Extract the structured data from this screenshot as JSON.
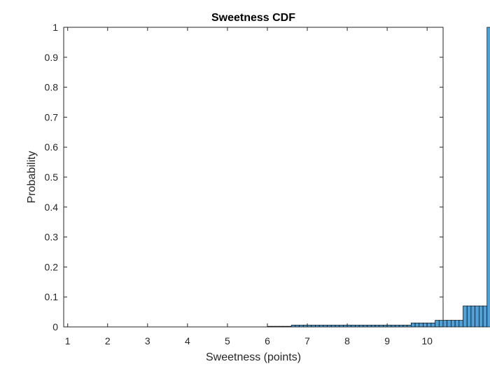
{
  "chart_data": {
    "type": "bar",
    "title": "Sweetness CDF",
    "xlabel": "Sweetness (points)",
    "ylabel": "Probability",
    "xlim": [
      0.9,
      10.4
    ],
    "ylim": [
      0,
      1
    ],
    "xticks": [
      "1",
      "2",
      "3",
      "4",
      "5",
      "6",
      "7",
      "8",
      "9",
      "10"
    ],
    "yticks": [
      "0",
      "0.1",
      "0.2",
      "0.3",
      "0.4",
      "0.5",
      "0.6",
      "0.7",
      "0.8",
      "0.9",
      "1"
    ],
    "bin_width": 0.1,
    "bin_edges_start": 1.0,
    "values": [
      0,
      0,
      0,
      0,
      0,
      0,
      0,
      0,
      0,
      0,
      0,
      0,
      0,
      0,
      0,
      0,
      0,
      0,
      0,
      0,
      0,
      0,
      0,
      0,
      0,
      0,
      0,
      0,
      0,
      0,
      0,
      0,
      0,
      0,
      0,
      0,
      0,
      0,
      0,
      0,
      0,
      0,
      0,
      0,
      0,
      0,
      0,
      0,
      0,
      0,
      0.002,
      0.002,
      0.002,
      0.002,
      0.002,
      0.002,
      0.006,
      0.006,
      0.006,
      0.006,
      0.006,
      0.006,
      0.006,
      0.006,
      0.006,
      0.006,
      0.006,
      0.006,
      0.006,
      0.006,
      0.006,
      0.006,
      0.006,
      0.006,
      0.006,
      0.006,
      0.006,
      0.006,
      0.006,
      0.006,
      0.006,
      0.006,
      0.006,
      0.006,
      0.006,
      0.006,
      0.013,
      0.013,
      0.013,
      0.013,
      0.013,
      0.013,
      0.022,
      0.022,
      0.022,
      0.022,
      0.022,
      0.022,
      0.022,
      0.07,
      0.07,
      0.07,
      0.07,
      0.07,
      0.07,
      1.0
    ],
    "grid": false,
    "bar_color": "#4DA1D9",
    "bar_edge_color": "#000000"
  }
}
